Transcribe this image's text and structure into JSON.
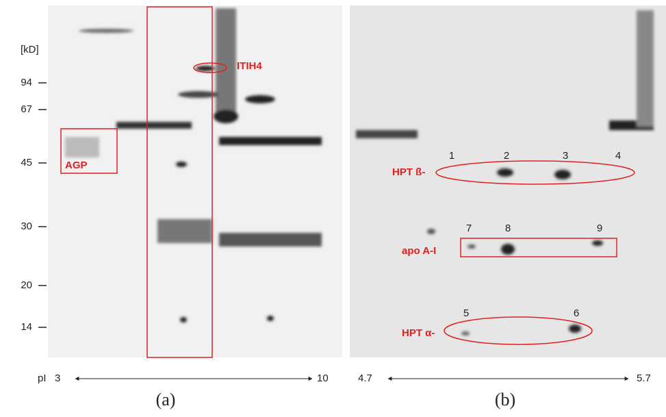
{
  "panel_a": {
    "mw_unit": "[kD]",
    "mw_ticks": [
      94,
      67,
      45,
      30,
      20,
      14
    ],
    "annotations": {
      "itih4": "ITIH4",
      "agp": "AGP"
    },
    "pi_label": "pI",
    "pi_start": 3,
    "pi_end": 10,
    "caption": "(a)"
  },
  "panel_b": {
    "labels": {
      "hpt_beta": "HPT ß-",
      "apo_ai": "apo A-I",
      "hpt_alpha": "HPT α-"
    },
    "spots": [
      1,
      2,
      3,
      4,
      5,
      6,
      7,
      8,
      9
    ],
    "pi_start": 4.7,
    "pi_end": 5.7,
    "caption": "(b)"
  }
}
